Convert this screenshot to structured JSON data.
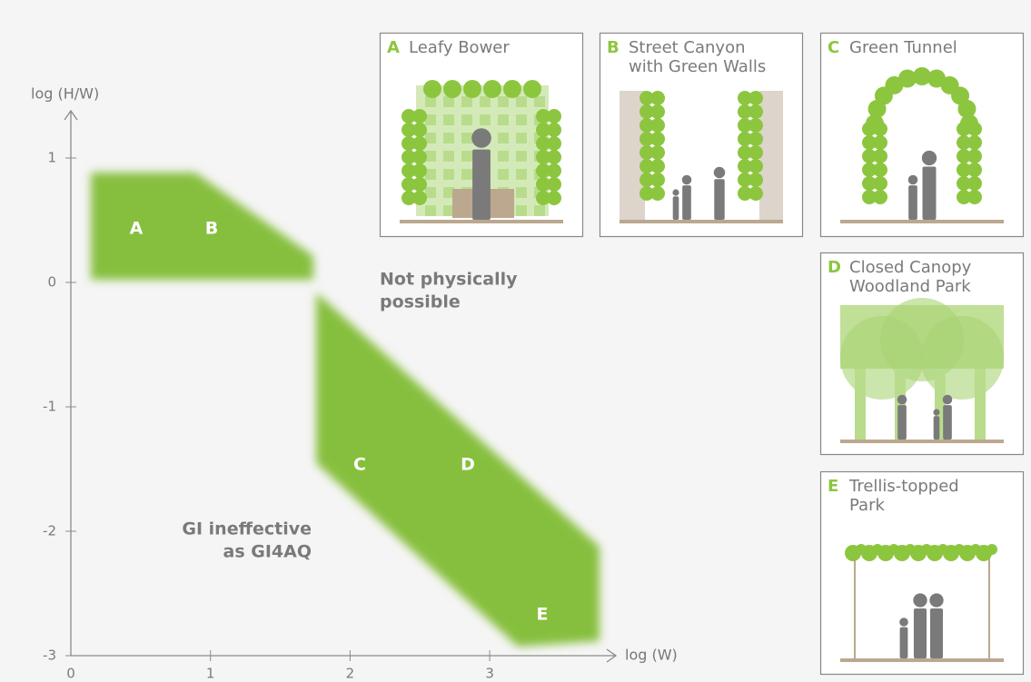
{
  "axes": {
    "y_label": "log (H/W)",
    "x_label": "log (W)",
    "x_ticks": [
      0,
      1,
      2,
      3
    ],
    "y_ticks": [
      1,
      0,
      -1,
      -2,
      -3
    ]
  },
  "regions": [
    "A",
    "B",
    "C",
    "D",
    "E"
  ],
  "annotations": [
    [
      "Not physically",
      "possible"
    ],
    [
      "GI ineffective",
      "as GI4AQ"
    ]
  ],
  "panels": [
    {
      "letter": "A",
      "title": [
        "Leafy Bower"
      ]
    },
    {
      "letter": "B",
      "title": [
        "Street Canyon",
        "with Green Walls"
      ]
    },
    {
      "letter": "C",
      "title": [
        "Green Tunnel"
      ]
    },
    {
      "letter": "D",
      "title": [
        "Closed Canopy",
        "Woodland Park"
      ]
    },
    {
      "letter": "E",
      "title": [
        "Trellis-topped",
        "Park"
      ]
    }
  ]
}
